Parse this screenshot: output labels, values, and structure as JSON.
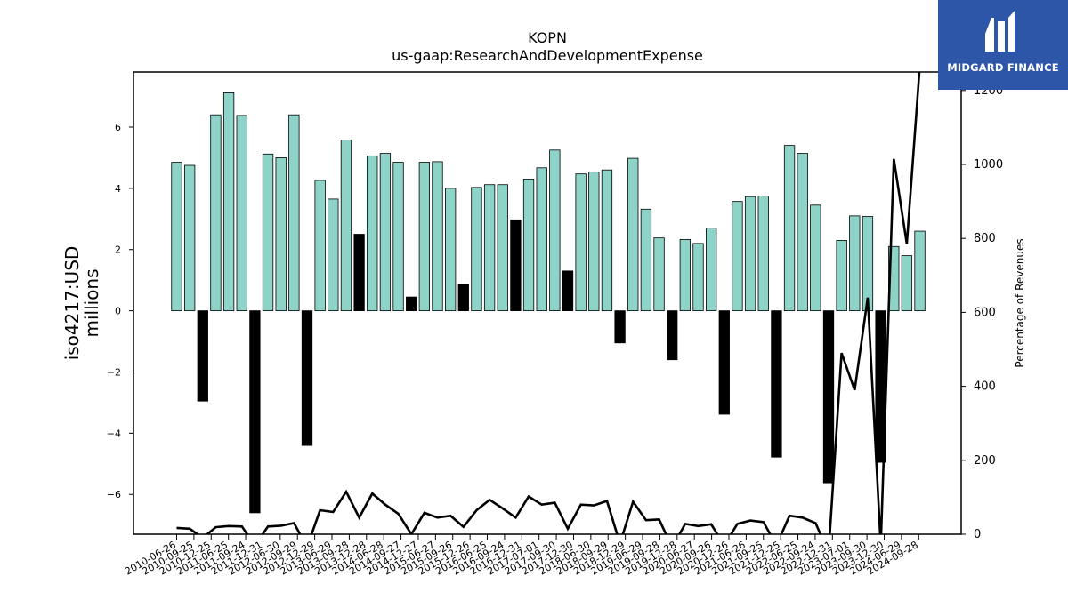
{
  "logo": {
    "text": "MIDGARD FINANCE"
  },
  "chart_data": {
    "type": "bar",
    "title": "KOPN",
    "subtitle": "us-gaap:ResearchAndDevelopmentExpense",
    "ylabel": "iso4217:USD\nmillions",
    "y2label": "Percentage of Revenues",
    "ylim": [
      -7.3,
      7.8
    ],
    "y2lim": [
      0,
      1250
    ],
    "yticks": [
      -6,
      -4,
      -2,
      0,
      2,
      4,
      6
    ],
    "y2ticks": [
      0,
      200,
      400,
      600,
      800,
      1000,
      1200
    ],
    "colors": {
      "bar": "#8dd3c7",
      "change": "#000000",
      "line": "#000000"
    },
    "x_tick_labels": [
      "2010-06-26",
      "2010-09-25",
      "2010-12-25",
      "2011-06-25",
      "2011-09-24",
      "2011-12-31",
      "2012-06-30",
      "2012-09-29",
      "2012-12-29",
      "2013-06-29",
      "2013-09-28",
      "2013-12-28",
      "2014-06-28",
      "2014-09-27",
      "2014-12-27",
      "2015-06-27",
      "2015-09-26",
      "2015-12-26",
      "2016-06-25",
      "2016-09-24",
      "2016-12-31",
      "2017-07-01",
      "2017-09-30",
      "2017-12-30",
      "2018-06-30",
      "2018-09-29",
      "2018-12-29",
      "2019-06-29",
      "2019-09-28",
      "2019-12-28",
      "2020-06-27",
      "2020-09-26",
      "2020-12-26",
      "2021-06-26",
      "2021-09-25",
      "2021-12-25",
      "2022-06-25",
      "2022-09-24",
      "2022-12-31",
      "2023-07-01",
      "2023-09-30",
      "2023-12-30",
      "2024-06-29",
      "2024-09-28"
    ],
    "series": [
      {
        "values": [
          4.85,
          4.75,
          null,
          6.4,
          7.12,
          6.38,
          null,
          5.12,
          5.0,
          6.4,
          null,
          4.26,
          3.65,
          5.58,
          null,
          5.06,
          5.14,
          4.85,
          null,
          4.85,
          4.87,
          4.0,
          null,
          4.03,
          4.12,
          4.12,
          null,
          4.3,
          4.67,
          5.25,
          null,
          4.47,
          4.53,
          4.6,
          null,
          4.98,
          3.32,
          2.38,
          null,
          2.33,
          2.2,
          2.7,
          null,
          3.57,
          3.73,
          3.75,
          null,
          5.4,
          5.14,
          3.45,
          null,
          2.3,
          3.1,
          3.08,
          null,
          2.1,
          1.8,
          2.6
        ]
      },
      {
        "values": [
          null,
          null,
          -2.95,
          null,
          null,
          null,
          -6.6,
          null,
          null,
          null,
          -4.4,
          null,
          null,
          null,
          2.5,
          null,
          null,
          null,
          0.45,
          null,
          null,
          null,
          0.85,
          null,
          null,
          null,
          2.97,
          null,
          null,
          null,
          1.3,
          null,
          null,
          null,
          -1.05,
          null,
          null,
          null,
          -1.6,
          null,
          null,
          null,
          -3.38,
          null,
          null,
          null,
          -4.78,
          null,
          null,
          null,
          -5.62,
          null,
          null,
          null,
          -4.95,
          null,
          null,
          null
        ]
      },
      {
        "values": [
          17,
          15,
          -10,
          19,
          22,
          21,
          -30,
          21,
          23,
          30,
          -35,
          65,
          60,
          115,
          45,
          110,
          80,
          55,
          0,
          58,
          45,
          50,
          20,
          65,
          93,
          70,
          45,
          102,
          80,
          85,
          15,
          80,
          78,
          90,
          -25,
          88,
          38,
          40,
          -35,
          28,
          22,
          27,
          -30,
          28,
          37,
          33,
          -30,
          50,
          45,
          30,
          -50,
          490,
          390,
          640,
          -30,
          1015,
          785,
          1270
        ]
      }
    ]
  }
}
